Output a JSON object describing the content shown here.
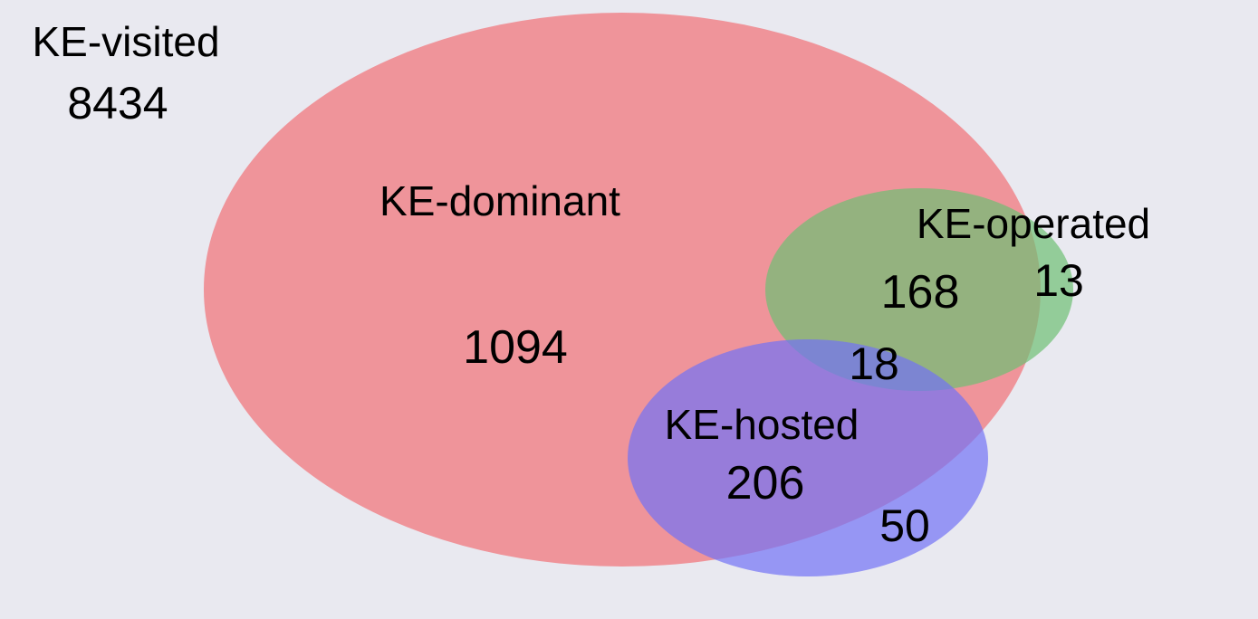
{
  "diagram": {
    "type": "venn",
    "universe": {
      "label": "KE-visited",
      "value": "8434"
    },
    "sets": [
      {
        "key": "dominant",
        "label": "KE-dominant",
        "color": "#f07e84",
        "value": "1094"
      },
      {
        "key": "operated",
        "label": "KE-operated",
        "color": "#6dbf73",
        "value": "13"
      },
      {
        "key": "hosted",
        "label": "KE-hosted",
        "color": "#7272f5",
        "value": "50"
      }
    ],
    "intersections": [
      {
        "sets": [
          "dominant",
          "operated"
        ],
        "value": "168"
      },
      {
        "sets": [
          "dominant",
          "hosted"
        ],
        "value": "206"
      },
      {
        "sets": [
          "dominant",
          "operated",
          "hosted"
        ],
        "value": "18"
      }
    ]
  }
}
